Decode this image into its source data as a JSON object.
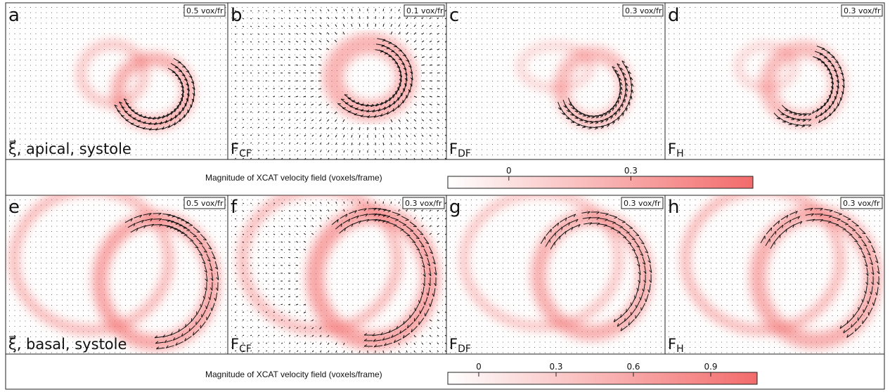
{
  "panels": [
    {
      "id": "a",
      "letter": "a",
      "scale": "0.5 vox/fr",
      "caption": "ξ⃗, apical, systole",
      "sub": ""
    },
    {
      "id": "b",
      "letter": "b",
      "scale": "0.1 vox/fr",
      "caption": "F",
      "sub": "CF"
    },
    {
      "id": "c",
      "letter": "c",
      "scale": "0.3 vox/fr",
      "caption": "F",
      "sub": "DF"
    },
    {
      "id": "d",
      "letter": "d",
      "scale": "0.3 vox/fr",
      "caption": "F",
      "sub": "H"
    },
    {
      "id": "e",
      "letter": "e",
      "scale": "0.5 vox/fr",
      "caption": "ξ⃗, basal, systole",
      "sub": ""
    },
    {
      "id": "f",
      "letter": "f",
      "scale": "0.3 vox/fr",
      "caption": "F",
      "sub": "CF"
    },
    {
      "id": "g",
      "letter": "g",
      "scale": "0.3 vox/fr",
      "caption": "F",
      "sub": "DF"
    },
    {
      "id": "h",
      "letter": "h",
      "scale": "0.3 vox/fr",
      "caption": "F",
      "sub": "H"
    }
  ],
  "colorbars": [
    {
      "title": "Magnitude of XCAT velocity field (voxels/frame)",
      "ticks": [
        "0",
        "0.3"
      ],
      "min": -0.15,
      "max": 0.6
    },
    {
      "title": "Magnitude of XCAT velocity field (voxels/frame)",
      "ticks": [
        "0",
        "0.3",
        "0.6",
        "0.9"
      ],
      "min": -0.12,
      "max": 1.08
    }
  ],
  "colors": {
    "heat": "#f36b6b",
    "arrow": "#111111",
    "grid_dot": "#6b6b6b"
  }
}
